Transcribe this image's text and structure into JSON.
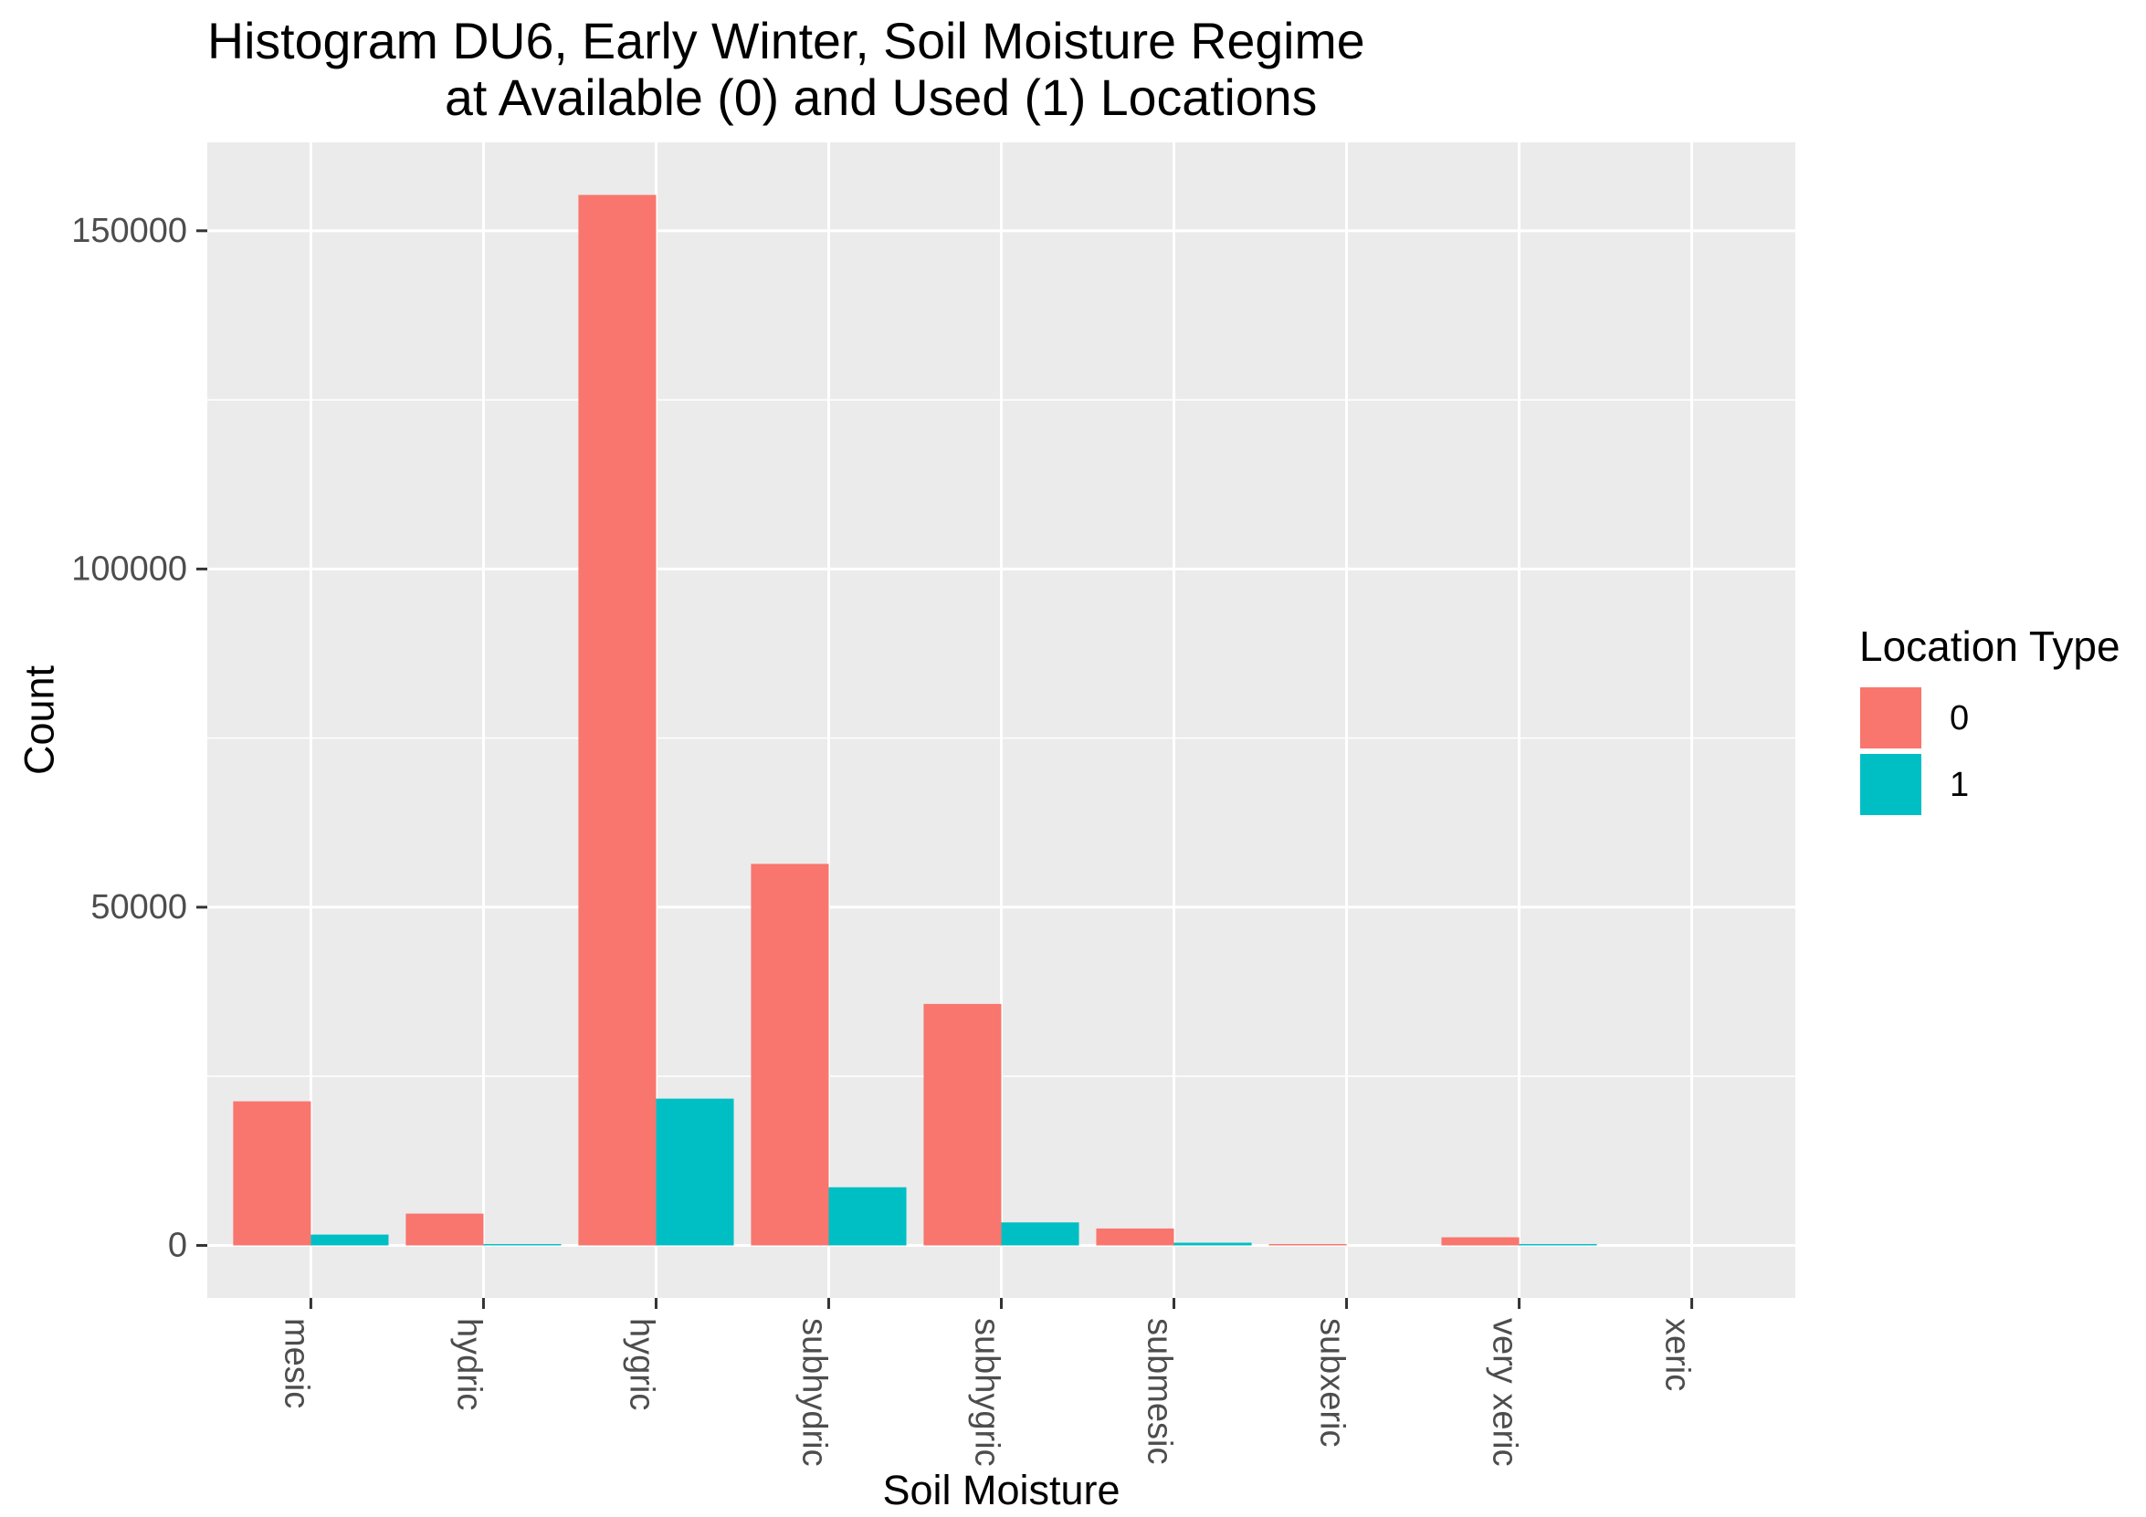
{
  "chart_data": {
    "type": "bar",
    "title": [
      "Histogram DU6, Early Winter, Soil Moisture Regime",
      "at Available (0) and Used (1) Locations"
    ],
    "xlabel": "Soil Moisture",
    "ylabel": "Count",
    "categories": [
      "mesic",
      "hydric",
      "hygric",
      "subhydric",
      "subhygric",
      "submesic",
      "subxeric",
      "very xeric",
      "xeric"
    ],
    "series": [
      {
        "name": "0",
        "color": "#F8766D",
        "values": [
          21300,
          4700,
          155300,
          56400,
          35700,
          2500,
          200,
          1200,
          0
        ]
      },
      {
        "name": "1",
        "color": "#00BFC4",
        "values": [
          1600,
          200,
          21700,
          8600,
          3400,
          400,
          0,
          200,
          0
        ]
      }
    ],
    "legend_title": "Location Type",
    "legend_position": "right",
    "y_ticks": [
      0,
      50000,
      100000,
      150000
    ],
    "ylim": [
      -7765,
      163065
    ],
    "grid": true,
    "panel_background": "#EBEBEB"
  }
}
